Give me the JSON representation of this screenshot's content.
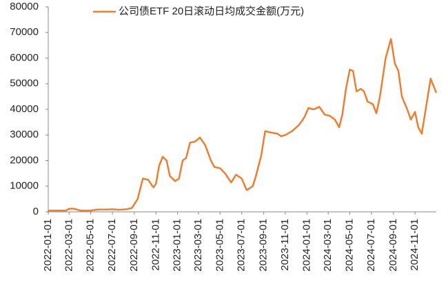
{
  "chart_data": {
    "type": "line",
    "series": [
      {
        "name": "公司债ETF 20日滚动日均成交金额(万元)",
        "color": "#ed7d31",
        "x": [
          "2022-01-01",
          "2022-02-01",
          "2022-02-20",
          "2022-03-01",
          "2022-03-15",
          "2022-04-01",
          "2022-05-01",
          "2022-05-20",
          "2022-06-15",
          "2022-07-01",
          "2022-07-20",
          "2022-08-10",
          "2022-08-25",
          "2022-09-10",
          "2022-09-25",
          "2022-10-10",
          "2022-10-25",
          "2022-11-01",
          "2022-11-10",
          "2022-11-20",
          "2022-12-01",
          "2022-12-10",
          "2022-12-25",
          "2023-01-05",
          "2023-01-15",
          "2023-01-25",
          "2023-02-05",
          "2023-02-20",
          "2023-03-05",
          "2023-03-20",
          "2023-04-05",
          "2023-04-15",
          "2023-05-01",
          "2023-05-15",
          "2023-06-01",
          "2023-06-15",
          "2023-07-01",
          "2023-07-15",
          "2023-08-01",
          "2023-08-10",
          "2023-08-25",
          "2023-09-05",
          "2023-09-20",
          "2023-10-10",
          "2023-10-20",
          "2023-11-01",
          "2023-11-20",
          "2023-12-10",
          "2023-12-25",
          "2024-01-05",
          "2024-01-20",
          "2024-02-05",
          "2024-02-20",
          "2024-03-05",
          "2024-03-20",
          "2024-04-01",
          "2024-04-10",
          "2024-04-20",
          "2024-05-01",
          "2024-05-10",
          "2024-05-20",
          "2024-06-01",
          "2024-06-10",
          "2024-06-20",
          "2024-07-05",
          "2024-07-15",
          "2024-07-25",
          "2024-08-10",
          "2024-08-25",
          "2024-09-05",
          "2024-09-15",
          "2024-09-25",
          "2024-10-10",
          "2024-10-20",
          "2024-11-01",
          "2024-11-10",
          "2024-11-20",
          "2024-12-01",
          "2024-12-15",
          "2024-12-31"
        ],
        "values": [
          500,
          500,
          500,
          1200,
          1200,
          500,
          500,
          900,
          900,
          1000,
          800,
          1000,
          1500,
          5000,
          13000,
          12500,
          9500,
          11000,
          18000,
          21500,
          20000,
          14000,
          12000,
          13000,
          20000,
          21000,
          27000,
          27500,
          29000,
          26000,
          20000,
          17500,
          17000,
          15000,
          11500,
          14500,
          13000,
          8500,
          10000,
          14000,
          22000,
          31500,
          31000,
          30500,
          29500,
          30000,
          31500,
          34000,
          37000,
          40500,
          40000,
          41000,
          38000,
          37500,
          36000,
          33000,
          38000,
          48000,
          55500,
          55000,
          47000,
          48000,
          47000,
          43000,
          42000,
          38500,
          45000,
          60000,
          67500,
          58000,
          55000,
          45000,
          40000,
          36000,
          39000,
          33000,
          30500,
          40000,
          52000,
          46500
        ]
      }
    ],
    "xlim": [
      "2022-01-01",
      "2024-12-31"
    ],
    "xticks": [
      "2022-01-01",
      "2022-03-01",
      "2022-05-01",
      "2022-07-01",
      "2022-09-01",
      "2022-11-01",
      "2023-01-01",
      "2023-03-01",
      "2023-05-01",
      "2023-07-01",
      "2023-09-01",
      "2023-11-01",
      "2024-01-01",
      "2024-03-01",
      "2024-05-01",
      "2024-07-01",
      "2024-09-01",
      "2024-11-01"
    ],
    "ylim": [
      0,
      80000
    ],
    "yticks": [
      0,
      10000,
      20000,
      30000,
      40000,
      50000,
      60000,
      70000,
      80000
    ],
    "legend": "top"
  }
}
